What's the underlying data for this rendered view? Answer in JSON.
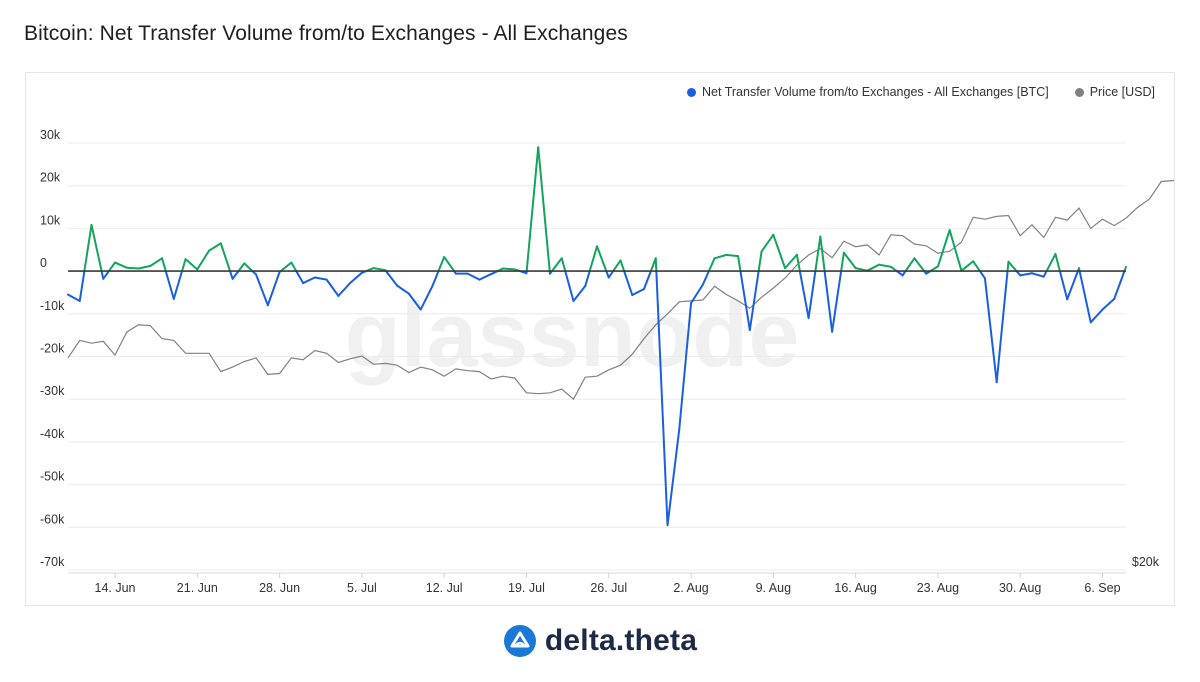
{
  "title": "Bitcoin: Net Transfer Volume from/to Exchanges - All Exchanges",
  "watermark": "glassnode",
  "footer": {
    "brand": "delta.theta"
  },
  "colors": {
    "outflow": "#1a5fe0",
    "inflow": "#12a55b",
    "price": "#808080",
    "zero_line": "#3a3a3a",
    "grid": "#ececec"
  },
  "chart_data": {
    "type": "line",
    "title": "Bitcoin: Net Transfer Volume from/to Exchanges - All Exchanges",
    "legend_placement": "top-right",
    "grid": true,
    "series": [
      {
        "name": "Net Transfer Volume from/to Exchanges - All Exchanges [BTC]",
        "axis": "left",
        "color_positive": "#12a55b",
        "color_negative": "#1a5fe0",
        "values": [
          -5500,
          -7000,
          10800,
          -1800,
          2000,
          800,
          600,
          1200,
          3000,
          -6500,
          2800,
          400,
          4800,
          6500,
          -1800,
          1800,
          -800,
          -8000,
          -200,
          2000,
          -2800,
          -1500,
          -2000,
          -5800,
          -2800,
          -400,
          700,
          200,
          -3400,
          -5300,
          -9000,
          -3500,
          3300,
          -600,
          -600,
          -2000,
          -700,
          600,
          400,
          -500,
          29000,
          -600,
          3000,
          -7000,
          -3500,
          5800,
          -1500,
          2500,
          -5600,
          -4200,
          3000,
          -59500,
          -37000,
          -7500,
          -3200,
          3000,
          3800,
          3500,
          -13800,
          4600,
          8500,
          700,
          3800,
          -11000,
          8100,
          -14200,
          4300,
          700,
          100,
          1500,
          1000,
          -1000,
          3000,
          -600,
          1100,
          9600,
          100,
          2300,
          -1700,
          -26000,
          2200,
          -1000,
          -500,
          -1300,
          4000,
          -6600,
          700,
          -12000,
          -9000,
          -6500,
          1000
        ],
        "legend_dot_color": "#1a5fe0"
      },
      {
        "name": "Price [USD]",
        "axis": "right",
        "color": "#808080",
        "values": [
          33700,
          35600,
          35300,
          35500,
          34000,
          36500,
          37300,
          37200,
          35800,
          35600,
          34200,
          34200,
          34200,
          32200,
          32700,
          33300,
          33700,
          31900,
          32000,
          33700,
          33500,
          34500,
          34200,
          33200,
          33600,
          33900,
          33000,
          33100,
          32900,
          32100,
          32700,
          32400,
          31700,
          32500,
          32300,
          32200,
          31400,
          31700,
          31500,
          29900,
          29800,
          29900,
          30300,
          29200,
          31600,
          31700,
          32400,
          32900,
          34100,
          35800,
          37300,
          38500,
          39800,
          39900,
          40000,
          41500,
          40600,
          39900,
          39100,
          40300,
          41300,
          42400,
          43800,
          44900,
          45600,
          44600,
          46400,
          45800,
          46000,
          44900,
          47100,
          47000,
          46100,
          45900,
          45100,
          45300,
          46300,
          49000,
          48800,
          49100,
          49200,
          47000,
          48200,
          46800,
          49000,
          48700,
          50000,
          47800,
          48800,
          48100,
          48900,
          50100,
          51000,
          52900,
          53000,
          53500,
          53700,
          55000,
          55000
        ]
      }
    ],
    "x_tick_labels": [
      "14. Jun",
      "21. Jun",
      "28. Jun",
      "5. Jul",
      "12. Jul",
      "19. Jul",
      "26. Jul",
      "2. Aug",
      "9. Aug",
      "16. Aug",
      "23. Aug",
      "30. Aug",
      "6. Sep"
    ],
    "y_left": {
      "ticks": [
        "30k",
        "20k",
        "10k",
        "0",
        "-10k",
        "-20k",
        "-30k",
        "-40k",
        "-50k",
        "-60k",
        "-70k"
      ],
      "range": [
        -70000,
        30000
      ]
    },
    "y_right": {
      "ticks": [
        "$20k"
      ]
    }
  }
}
